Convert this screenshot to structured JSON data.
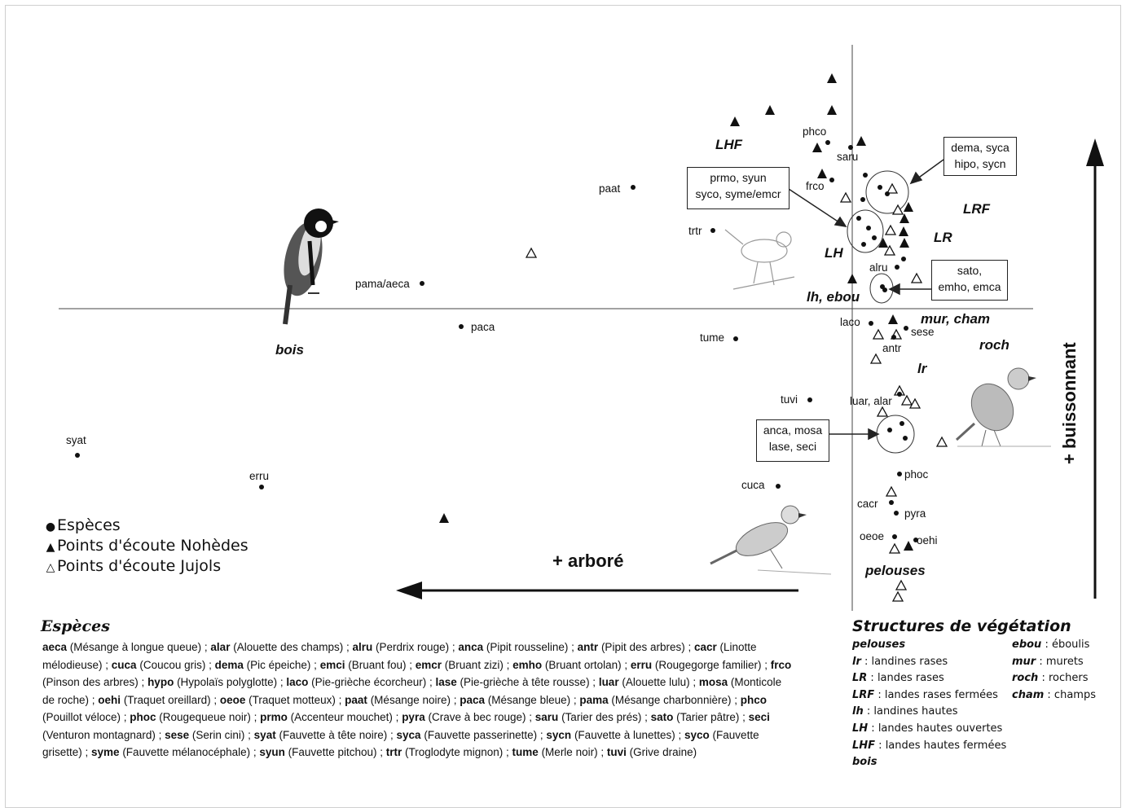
{
  "labels": {
    "bois": "bois",
    "arbore": "+ arboré",
    "buissonnant": "+ buissonnant",
    "LHF": "LHF",
    "LRF": "LRF",
    "LR": "LR",
    "LH": "LH",
    "lh_ebou": "lh, ebou",
    "mur_cham": "mur, cham",
    "roch": "roch",
    "lr": "lr",
    "pelouses": "pelouses"
  },
  "boxes": {
    "dema_syca": [
      "dema, syca",
      "hipo, sycn"
    ],
    "prmo_syun": [
      "prmo, syun",
      "syco, syme/emcr"
    ],
    "sato": [
      "sato,",
      "emho, emca"
    ],
    "anca": [
      "anca, mosa",
      "lase, seci"
    ]
  },
  "species_points": {
    "syat": "syat",
    "erru": "erru",
    "pama_aeca": "pama/aeca",
    "paca": "paca",
    "paat": "paat",
    "trtr": "trtr",
    "tume": "tume",
    "tuvi": "tuvi",
    "cuca": "cuca",
    "phco": "phco",
    "saru": "saru",
    "frco": "frco",
    "alru": "alru",
    "laco": "laco",
    "sese": "sese",
    "antr": "antr",
    "luar_alar": "luar, alar",
    "phoc": "phoc",
    "cacr": "cacr",
    "pyra": "pyra",
    "oeoe": "oeoe",
    "oehi": "oehi"
  },
  "legend": {
    "especes": "Espèces",
    "nohedes": "Points d'écoute Nohèdes",
    "jujols": "Points d'écoute Jujols"
  },
  "species_section": {
    "title": "Espèces",
    "entries": [
      [
        "aeca",
        " (Mésange à longue queue) ; "
      ],
      [
        "alar",
        " (Alouette des champs) ; "
      ],
      [
        "alru",
        " (Perdrix rouge) ; "
      ],
      [
        "anca",
        " (Pipit rousseline) ; "
      ],
      [
        "antr",
        " (Pipit des arbres) ; "
      ],
      [
        "cacr",
        " (Linotte mélodieuse) ; "
      ],
      [
        "cuca",
        " (Coucou gris) ; "
      ],
      [
        "dema",
        " (Pic épeiche) ; "
      ],
      [
        "emci",
        " (Bruant fou) ; "
      ],
      [
        "emcr",
        " (Bruant zizi) ; "
      ],
      [
        "emho",
        " (Bruant ortolan) ; "
      ],
      [
        "erru",
        " (Rougegorge familier) ; "
      ],
      [
        "frco",
        " (Pinson des arbres) ; "
      ],
      [
        "hypo",
        " (Hypolaïs polyglotte) ; "
      ],
      [
        "laco",
        " (Pie-grièche écorcheur) ; "
      ],
      [
        "lase",
        " (Pie-grièche à tête rousse) ; "
      ],
      [
        "luar",
        " (Alouette lulu) ; "
      ],
      [
        "mosa",
        " (Monticole de roche) ; "
      ],
      [
        "oehi",
        " (Traquet oreillard) ; "
      ],
      [
        "oeoe",
        " (Traquet motteux) ; "
      ],
      [
        "paat",
        " (Mésange noire) ; "
      ],
      [
        "paca",
        " (Mésange bleue) ; "
      ],
      [
        "pama",
        " (Mésange charbonnière) ; "
      ],
      [
        "phco",
        " (Pouillot véloce) ; "
      ],
      [
        "phoc",
        " (Rougequeue noir) ; "
      ],
      [
        "prmo",
        " (Accenteur mouchet) ; "
      ],
      [
        "pyra",
        " (Crave à bec rouge) ; "
      ],
      [
        "saru",
        " (Tarier des prés) ; "
      ],
      [
        "sato",
        " (Tarier pâtre) ; "
      ],
      [
        "seci",
        " (Venturon montagnard) ; "
      ],
      [
        "sese",
        " (Serin cini) ; "
      ],
      [
        "syat",
        " (Fauvette à tête noire) ; "
      ],
      [
        "syca",
        " (Fauvette passerinette) ; "
      ],
      [
        "sycn",
        " (Fauvette à lunettes) ; "
      ],
      [
        "syco",
        " (Fauvette grisette) ; "
      ],
      [
        "syme",
        " (Fauvette mélanocéphale) ; "
      ],
      [
        "syun",
        " (Fauvette pitchou) ; "
      ],
      [
        "trtr",
        " (Troglodyte mignon) ; "
      ],
      [
        "tume",
        " (Merle noir) ; "
      ],
      [
        "tuvi",
        " (Grive draine)"
      ]
    ]
  },
  "vegetation_section": {
    "title": "Structures de végétation",
    "col1": [
      {
        "key": "pelouses",
        "desc": ""
      },
      {
        "key": "lr",
        "desc": " : landines rases"
      },
      {
        "key": "LR",
        "desc": " : landes rases"
      },
      {
        "key": "LRF",
        "desc": " : landes rases fermées"
      },
      {
        "key": "lh",
        "desc": " : landines hautes"
      },
      {
        "key": "LH",
        "desc": " : landes hautes ouvertes"
      },
      {
        "key": "LHF",
        "desc": " : landes hautes fermées"
      },
      {
        "key": "bois",
        "desc": ""
      }
    ],
    "col2": [
      {
        "key": "ebou",
        "desc": " : éboulis"
      },
      {
        "key": "mur",
        "desc": " : murets"
      },
      {
        "key": "roch",
        "desc": " : rochers"
      },
      {
        "key": "cham",
        "desc": " : champs"
      }
    ]
  }
}
